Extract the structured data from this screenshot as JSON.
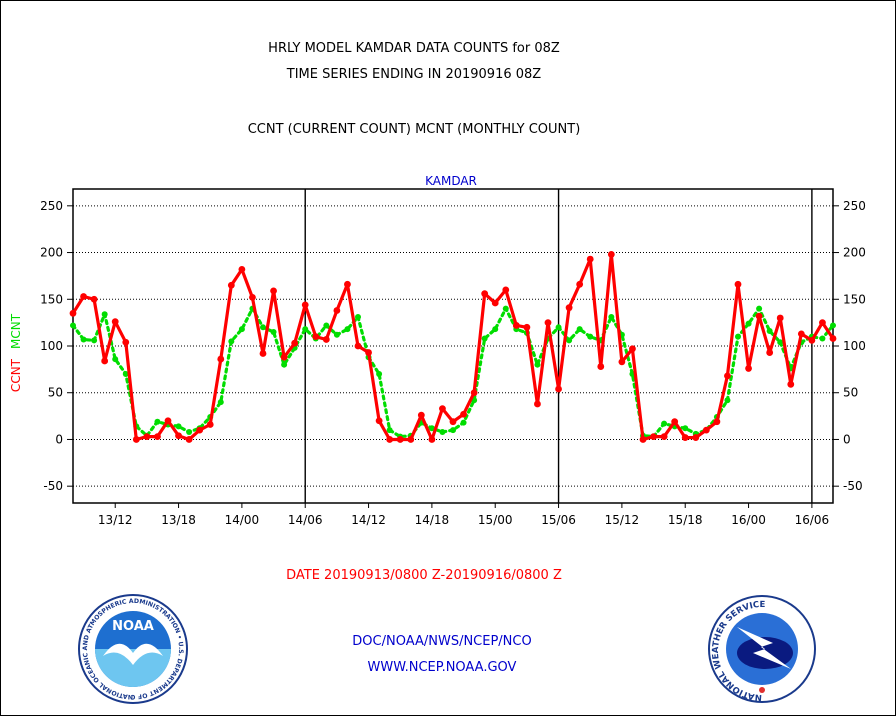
{
  "chart_data": {
    "type": "line",
    "title_lines": [
      "HRLY MODEL KAMDAR DATA COUNTS for 08Z",
      "TIME SERIES ENDING IN 20190916 08Z"
    ],
    "subtitle": "CCNT (CURRENT COUNT) MCNT (MONTHLY COUNT)",
    "panel_label": "KAMDAR",
    "ylabel_left": [
      "CCNT",
      "MCNT"
    ],
    "x_ticks": [
      "13/12",
      "13/18",
      "14/00",
      "14/06",
      "14/12",
      "14/18",
      "15/00",
      "15/06",
      "15/12",
      "15/18",
      "16/00",
      "16/06"
    ],
    "x_tick_hours": [
      4,
      10,
      16,
      22,
      28,
      34,
      40,
      46,
      52,
      58,
      64,
      70
    ],
    "y_ticks": [
      -50,
      0,
      50,
      100,
      150,
      200,
      250
    ],
    "ylim": [
      -68,
      268
    ],
    "xlim": [
      0,
      72
    ],
    "day_boundaries_hours": [
      22,
      46,
      70
    ],
    "grid": true,
    "date_range": "DATE 20190913/0800 Z-20190916/0800 Z",
    "series": [
      {
        "name": "CCNT",
        "color": "#ff0000",
        "values": [
          135,
          153,
          150,
          84,
          126,
          104,
          0,
          3,
          3,
          20,
          4,
          0,
          10,
          16,
          86,
          165,
          182,
          152,
          92,
          159,
          88,
          103,
          144,
          110,
          107,
          138,
          166,
          100,
          93,
          20,
          0,
          0,
          0,
          26,
          0,
          33,
          19,
          27,
          50,
          156,
          146,
          160,
          122,
          120,
          38,
          125,
          54,
          141,
          166,
          193,
          78,
          198,
          83,
          97,
          0,
          3,
          3,
          19,
          2,
          2,
          10,
          19,
          68,
          166,
          76,
          132,
          93,
          130,
          59,
          113,
          106,
          125,
          108
        ]
      },
      {
        "name": "MCNT",
        "color": "#00dd00",
        "values": [
          122,
          107,
          106,
          134,
          86,
          70,
          14,
          4,
          19,
          16,
          14,
          8,
          12,
          24,
          40,
          105,
          118,
          140,
          120,
          115,
          80,
          98,
          118,
          108,
          122,
          112,
          118,
          131,
          88,
          70,
          10,
          3,
          4,
          18,
          12,
          8,
          10,
          18,
          42,
          108,
          118,
          140,
          118,
          114,
          80,
          108,
          120,
          106,
          118,
          110,
          106,
          131,
          112,
          70,
          4,
          3,
          17,
          14,
          12,
          6,
          10,
          24,
          42,
          110,
          124,
          140,
          116,
          104,
          76,
          104,
          110,
          108,
          122
        ]
      }
    ]
  },
  "footer": {
    "agency_line": "DOC/NOAA/NWS/NCEP/NCO",
    "url": "WWW.NCEP.NOAA.GOV"
  },
  "logos": {
    "noaa": {
      "text": "NOAA",
      "ring_text": "NATIONAL OCEANIC AND ATMOSPHERIC ADMINISTRATION • U.S. DEPARTMENT OF COMMERCE"
    },
    "nws": {
      "ring_text": "NATIONAL WEATHER SERVICE"
    }
  },
  "colors": {
    "title_text": "#000000",
    "panel_label": "#0000cc",
    "date_text": "#ff0000",
    "footer_text": "#0000cc",
    "ccnt": "#ff0000",
    "mcnt": "#00dd00"
  }
}
